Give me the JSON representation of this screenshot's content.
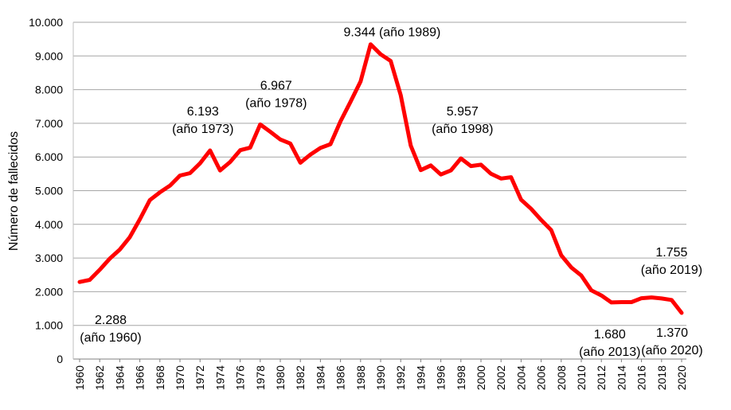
{
  "chart_data": {
    "type": "line",
    "title": "",
    "xlabel": "",
    "ylabel": "Número de fallecidos",
    "xlim": [
      1960,
      2020
    ],
    "ylim": [
      0,
      10000
    ],
    "y_ticks": [
      "0",
      "1.000",
      "2.000",
      "3.000",
      "4.000",
      "5.000",
      "6.000",
      "7.000",
      "8.000",
      "9.000",
      "10.000"
    ],
    "x_ticks": [
      "1960",
      "1962",
      "1964",
      "1966",
      "1968",
      "1970",
      "1972",
      "1974",
      "1976",
      "1978",
      "1980",
      "1982",
      "1984",
      "1986",
      "1988",
      "1990",
      "1992",
      "1994",
      "1996",
      "1998",
      "2000",
      "2002",
      "2004",
      "2006",
      "2008",
      "2010",
      "2012",
      "2014",
      "2016",
      "2018",
      "2020"
    ],
    "grid": true,
    "legend": "none",
    "color": "#ff0000",
    "series": [
      {
        "x": [
          1960,
          1961,
          1962,
          1963,
          1964,
          1965,
          1966,
          1967,
          1968,
          1969,
          1970,
          1971,
          1972,
          1973,
          1974,
          1975,
          1976,
          1977,
          1978,
          1979,
          1980,
          1981,
          1982,
          1983,
          1984,
          1985,
          1986,
          1987,
          1988,
          1989,
          1990,
          1991,
          1992,
          1993,
          1994,
          1995,
          1996,
          1997,
          1998,
          1999,
          2000,
          2001,
          2002,
          2003,
          2004,
          2005,
          2006,
          2007,
          2008,
          2009,
          2010,
          2011,
          2012,
          2013,
          2014,
          2015,
          2016,
          2017,
          2018,
          2019,
          2020
        ],
        "values": [
          2288,
          2350,
          2650,
          2980,
          3250,
          3620,
          4150,
          4720,
          4950,
          5150,
          5450,
          5520,
          5810,
          6193,
          5600,
          5850,
          6200,
          6280,
          6967,
          6750,
          6520,
          6400,
          5830,
          6070,
          6270,
          6380,
          7060,
          7640,
          8240,
          9344,
          9050,
          8850,
          7840,
          6340,
          5610,
          5750,
          5480,
          5600,
          5957,
          5730,
          5770,
          5500,
          5360,
          5400,
          4730,
          4460,
          4130,
          3830,
          3080,
          2720,
          2480,
          2040,
          1890,
          1680,
          1690,
          1690,
          1805,
          1830,
          1800,
          1755,
          1370
        ]
      }
    ],
    "annotations": [
      {
        "x": 1960,
        "y": 2288,
        "line1": "2.288",
        "line2": "(año 1960)"
      },
      {
        "x": 1973,
        "y": 6193,
        "line1": "6.193",
        "line2": "(año 1973)"
      },
      {
        "x": 1978,
        "y": 6967,
        "line1": "6.967",
        "line2": "(año 1978)"
      },
      {
        "x": 1989,
        "y": 9344,
        "line1": "9.344 (año 1989)",
        "line2": ""
      },
      {
        "x": 1998,
        "y": 5957,
        "line1": "5.957",
        "line2": "(año 1998)"
      },
      {
        "x": 2013,
        "y": 1680,
        "line1": "1.680",
        "line2": "(año 2013)"
      },
      {
        "x": 2019,
        "y": 1755,
        "line1": "1.755",
        "line2": "(año 2019)"
      },
      {
        "x": 2020,
        "y": 1370,
        "line1": "1.370",
        "line2": "(año 2020)"
      }
    ]
  }
}
